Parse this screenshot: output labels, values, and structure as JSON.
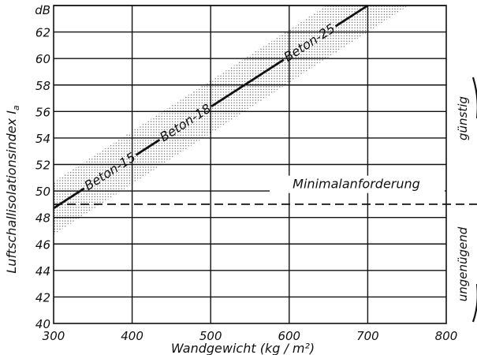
{
  "chart_data": {
    "type": "line",
    "title": "",
    "xlabel": "Wandgewicht (kg / m²)",
    "ylabel": "Luftschallisolationsindex  I",
    "ylabel_subscript": "a",
    "y_unit": "dB",
    "xlim": [
      300,
      800
    ],
    "ylim": [
      40,
      64
    ],
    "x_ticks": [
      300,
      400,
      500,
      600,
      700,
      800
    ],
    "y_ticks": [
      40,
      42,
      44,
      46,
      48,
      50,
      52,
      54,
      56,
      58,
      60,
      62
    ],
    "grid": true,
    "series": [
      {
        "name": "Beton",
        "x": [
          300,
          700
        ],
        "y": [
          48.7,
          64.0
        ],
        "band_halfwidth_db": 2.0,
        "style": "solid line with dotted tolerance band"
      }
    ],
    "segment_labels": [
      {
        "text": "Beton-15",
        "x": 372,
        "y": 51.5
      },
      {
        "text": "Beton-18",
        "x": 468,
        "y": 55.5
      },
      {
        "text": "Beton-25",
        "x": 626,
        "y": 61.2
      }
    ],
    "reference_line": {
      "label": "Minimalanforderung",
      "y": 49,
      "style": "dashed"
    },
    "side_annotations": {
      "upper": "günstig",
      "lower": "ungenügend"
    }
  }
}
